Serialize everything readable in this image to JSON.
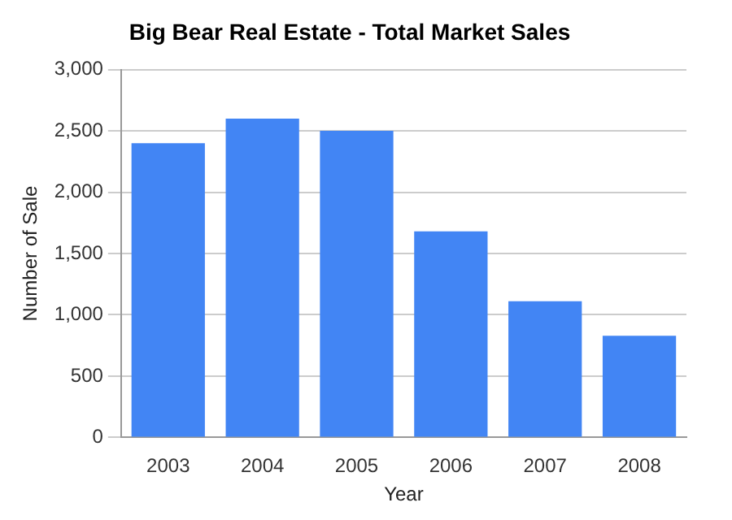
{
  "chart_data": {
    "type": "bar",
    "title": "Big Bear Real Estate - Total Market Sales",
    "xlabel": "Year",
    "ylabel": "Number of Sale",
    "categories": [
      "2003",
      "2004",
      "2005",
      "2006",
      "2007",
      "2008"
    ],
    "values": [
      2400,
      2600,
      2500,
      1680,
      1110,
      830
    ],
    "color": "#4285f4",
    "ylim": [
      0,
      3000
    ],
    "yticks": [
      {
        "value": 0,
        "label": "0"
      },
      {
        "value": 500,
        "label": "500"
      },
      {
        "value": 1000,
        "label": "1,000"
      },
      {
        "value": 1500,
        "label": "1,500"
      },
      {
        "value": 2000,
        "label": "2,000"
      },
      {
        "value": 2500,
        "label": "2,500"
      },
      {
        "value": 3000,
        "label": "3,000"
      }
    ],
    "grid": "y"
  }
}
